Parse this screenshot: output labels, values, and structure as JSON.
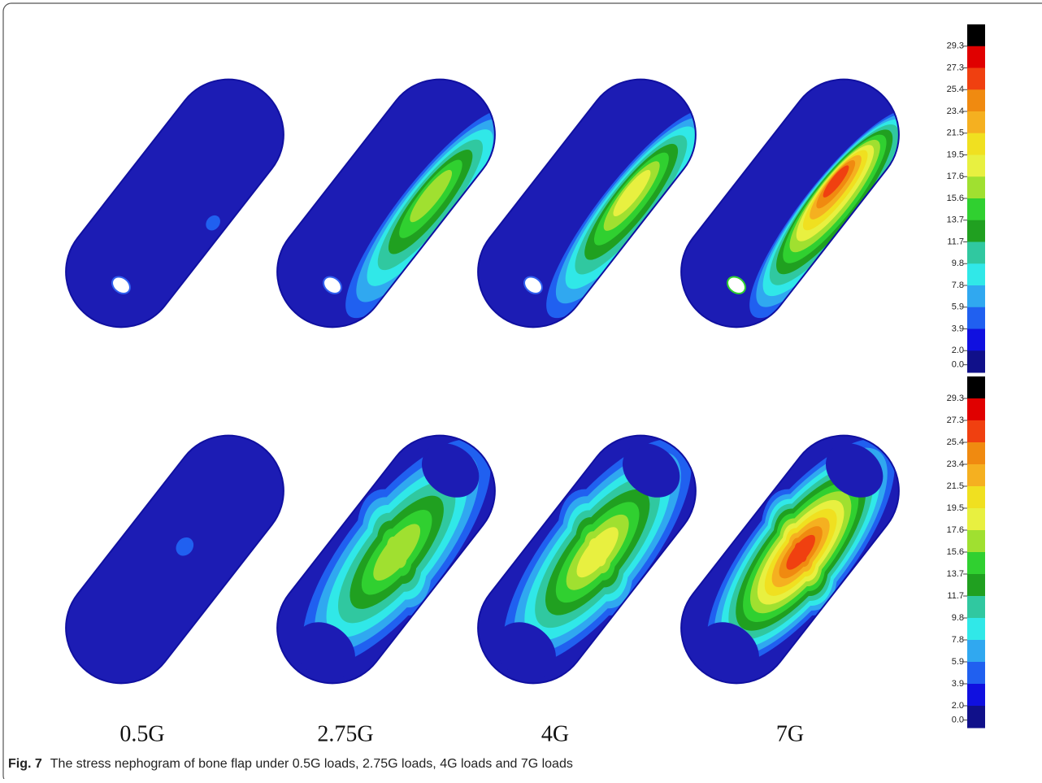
{
  "figure": {
    "column_labels": [
      "0.5G",
      "2.75G",
      "4G",
      "7G"
    ],
    "colorbar": {
      "labels": [
        "29.3",
        "27.3",
        "25.4",
        "23.4",
        "21.5",
        "19.5",
        "17.6",
        "15.6",
        "13.7",
        "11.7",
        "9.8",
        "7.8",
        "5.9",
        "3.9",
        "2.0",
        "0.0"
      ],
      "colors": [
        "#000000",
        "#e00000",
        "#f04010",
        "#f08a10",
        "#f5b020",
        "#f0e020",
        "#e8f040",
        "#a0e030",
        "#30d030",
        "#20a020",
        "#30c8a0",
        "#30e8e8",
        "#30a8f0",
        "#2060f0",
        "#1010e0",
        "#10108a"
      ]
    },
    "caption": {
      "label": "Fig. 7",
      "text": "The stress nephogram of bone flap under 0.5G loads, 2.75G loads, 4G loads and 7G loads"
    }
  }
}
